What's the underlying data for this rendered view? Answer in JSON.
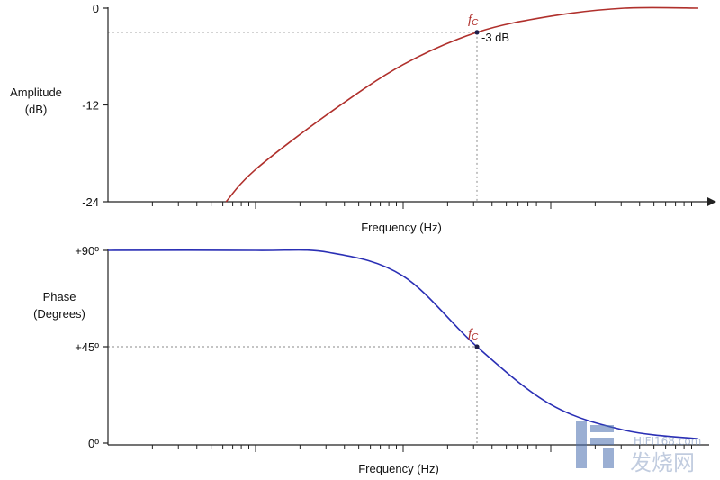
{
  "chart_data": [
    {
      "type": "line",
      "title": "",
      "ylabel_lines": [
        "Amplitude",
        "(dB)"
      ],
      "xlabel": "Frequency (Hz)",
      "ylim": [
        -24,
        0
      ],
      "yticks": [
        {
          "value": 0,
          "label": "0"
        },
        {
          "value": -12,
          "label": "-12"
        },
        {
          "value": -24,
          "label": "-24"
        }
      ],
      "xscale": "log",
      "x_decades": 4,
      "cutoff_decade": 2.5,
      "series": [
        {
          "color": "#b0302c",
          "points": [
            {
              "decade": 0.0,
              "y": -40.0
            },
            {
              "decade": 0.5,
              "y": -30.0
            },
            {
              "decade": 1.0,
              "y": -20.0
            },
            {
              "decade": 1.5,
              "y": -13.0
            },
            {
              "decade": 2.0,
              "y": -7.0
            },
            {
              "decade": 2.5,
              "y": -3.0
            },
            {
              "decade": 3.0,
              "y": -1.0
            },
            {
              "decade": 3.5,
              "y": 0.0
            },
            {
              "decade": 4.0,
              "y": 0.0
            }
          ]
        }
      ],
      "marker": {
        "label": "f",
        "sub": "C",
        "value_label": "-3 dB",
        "y": -3,
        "color": "#b0302c"
      }
    },
    {
      "type": "line",
      "title": "",
      "ylabel_lines": [
        "Phase",
        "(Degrees)"
      ],
      "xlabel": "Frequency (Hz)",
      "ylim": [
        0,
        90
      ],
      "yticks": [
        {
          "value": 90,
          "label": "+90º"
        },
        {
          "value": 45,
          "label": "+45º"
        },
        {
          "value": 0,
          "label": "0º"
        }
      ],
      "xscale": "log",
      "x_decades": 4,
      "cutoff_decade": 2.5,
      "series": [
        {
          "color": "#2a2fb5",
          "points": [
            {
              "decade": 0.0,
              "y": 90.0
            },
            {
              "decade": 1.0,
              "y": 90.0
            },
            {
              "decade": 1.5,
              "y": 89.0
            },
            {
              "decade": 2.0,
              "y": 78.0
            },
            {
              "decade": 2.5,
              "y": 45.0
            },
            {
              "decade": 3.0,
              "y": 18.0
            },
            {
              "decade": 3.5,
              "y": 6.0
            },
            {
              "decade": 4.0,
              "y": 2.0
            }
          ]
        }
      ],
      "marker": {
        "label": "f",
        "sub": "C",
        "value_label": "",
        "y": 45,
        "color": "#b0302c"
      }
    }
  ],
  "watermark": {
    "brand": "HIFI168.com",
    "text": "发烧网"
  }
}
